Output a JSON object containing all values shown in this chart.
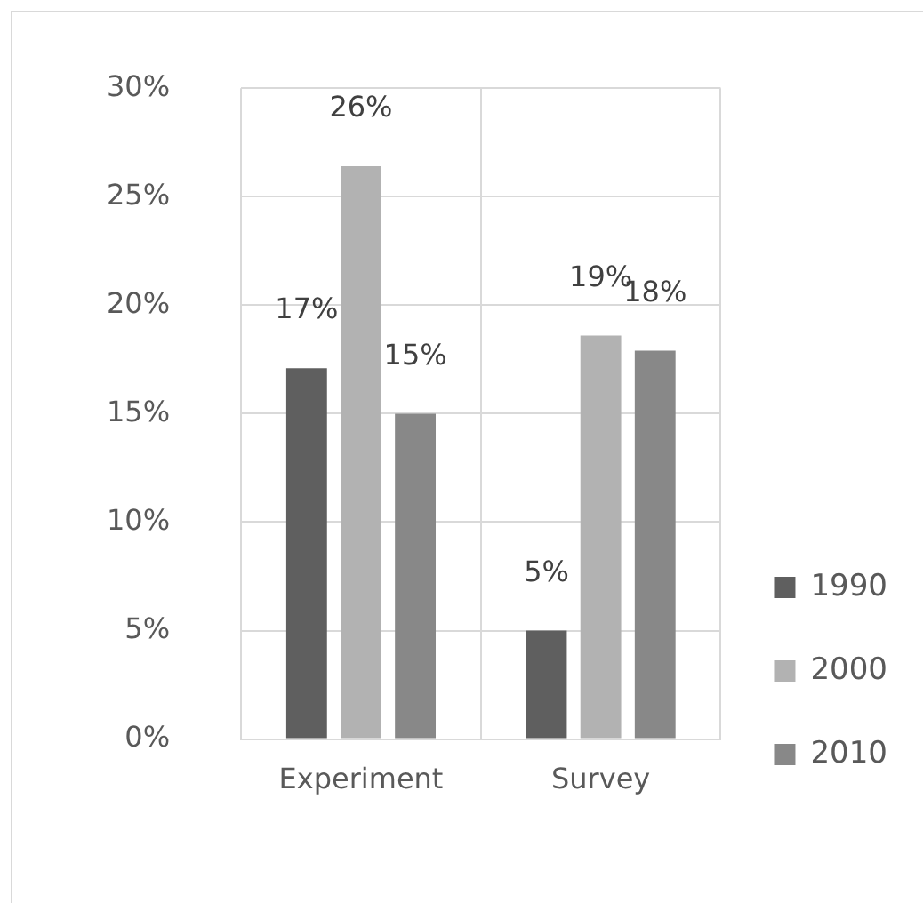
{
  "chart_data": {
    "type": "bar",
    "categories": [
      "Experiment",
      "Survey"
    ],
    "series": [
      {
        "name": "1990",
        "color": "#5f5f5f",
        "values": [
          17.1,
          5.0
        ],
        "value_labels": [
          "17%",
          "5%"
        ]
      },
      {
        "name": "2000",
        "color": "#b2b2b2",
        "values": [
          26.4,
          18.6
        ],
        "value_labels": [
          "26%",
          "19%"
        ]
      },
      {
        "name": "2010",
        "color": "#888888",
        "values": [
          15.0,
          17.9
        ],
        "value_labels": [
          "15%",
          "18%"
        ]
      }
    ],
    "ylim": [
      0,
      30
    ],
    "yticks": [
      {
        "value": 0,
        "label": "0%"
      },
      {
        "value": 5,
        "label": "5%"
      },
      {
        "value": 10,
        "label": "10%"
      },
      {
        "value": 15,
        "label": "15%"
      },
      {
        "value": 20,
        "label": "20%"
      },
      {
        "value": 25,
        "label": "25%"
      },
      {
        "value": 30,
        "label": "30%"
      }
    ],
    "grid": true,
    "legend": "bottom right"
  }
}
